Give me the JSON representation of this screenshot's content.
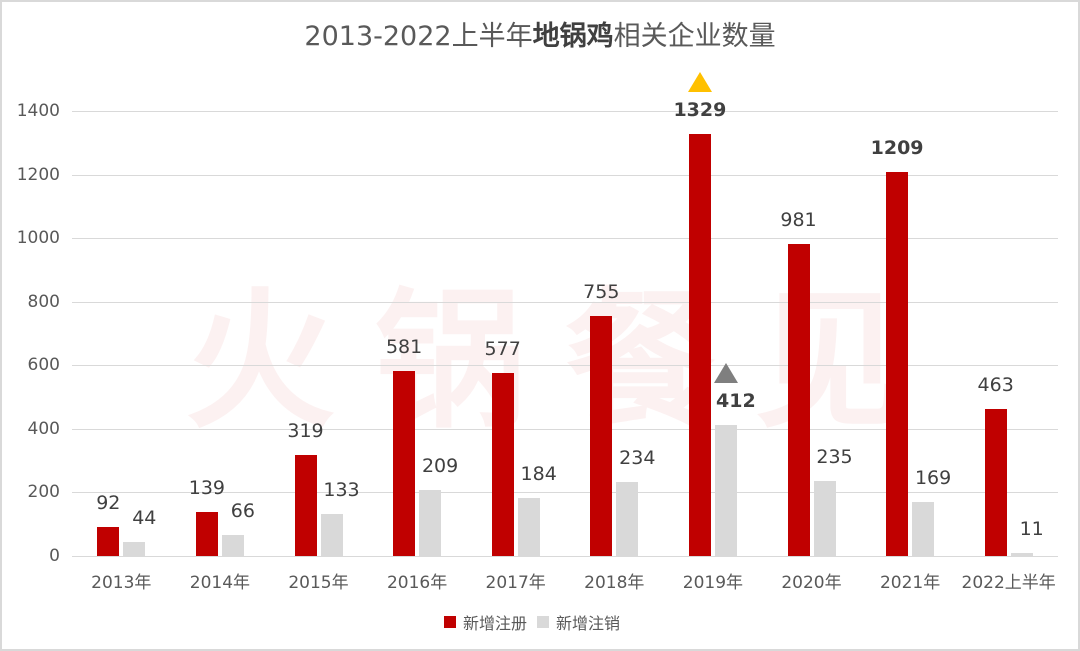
{
  "title": {
    "prefix": "2013-2022上半年",
    "bold": "地锅鸡",
    "suffix": "相关企业数量"
  },
  "watermark": [
    "火",
    "锅",
    "餐",
    "见"
  ],
  "colors": {
    "registered": "#c00000",
    "cancelled": "#d9d9d9",
    "up_marker_registered": "#ffc000",
    "up_marker_cancelled": "#7f7f7f"
  },
  "legend": [
    {
      "label": "新增注册",
      "color": "#c00000"
    },
    {
      "label": "新增注销",
      "color": "#d9d9d9"
    }
  ],
  "chart_data": {
    "type": "bar",
    "title": "2013-2022上半年地锅鸡相关企业数量",
    "xlabel": "",
    "ylabel": "",
    "ylim": [
      0,
      1400
    ],
    "yticks": [
      0,
      200,
      400,
      600,
      800,
      1000,
      1200,
      1400
    ],
    "grid": true,
    "legend_position": "bottom",
    "categories": [
      "2013年",
      "2014年",
      "2015年",
      "2016年",
      "2017年",
      "2018年",
      "2019年",
      "2020年",
      "2021年",
      "2022上半年"
    ],
    "series": [
      {
        "name": "新增注册",
        "values": [
          92,
          139,
          319,
          581,
          577,
          755,
          1329,
          981,
          1209,
          463
        ]
      },
      {
        "name": "新增注销",
        "values": [
          44,
          66,
          133,
          209,
          184,
          234,
          412,
          235,
          169,
          11
        ]
      }
    ],
    "annotations": [
      {
        "type": "triangle-up",
        "series": "新增注册",
        "category": "2019年",
        "color": "#ffc000",
        "label_bold": true
      },
      {
        "type": "triangle-up",
        "series": "新增注销",
        "category": "2019年",
        "color": "#7f7f7f",
        "label_bold": true
      },
      {
        "type": "bold-label",
        "series": "新增注册",
        "category": "2021年"
      }
    ]
  }
}
